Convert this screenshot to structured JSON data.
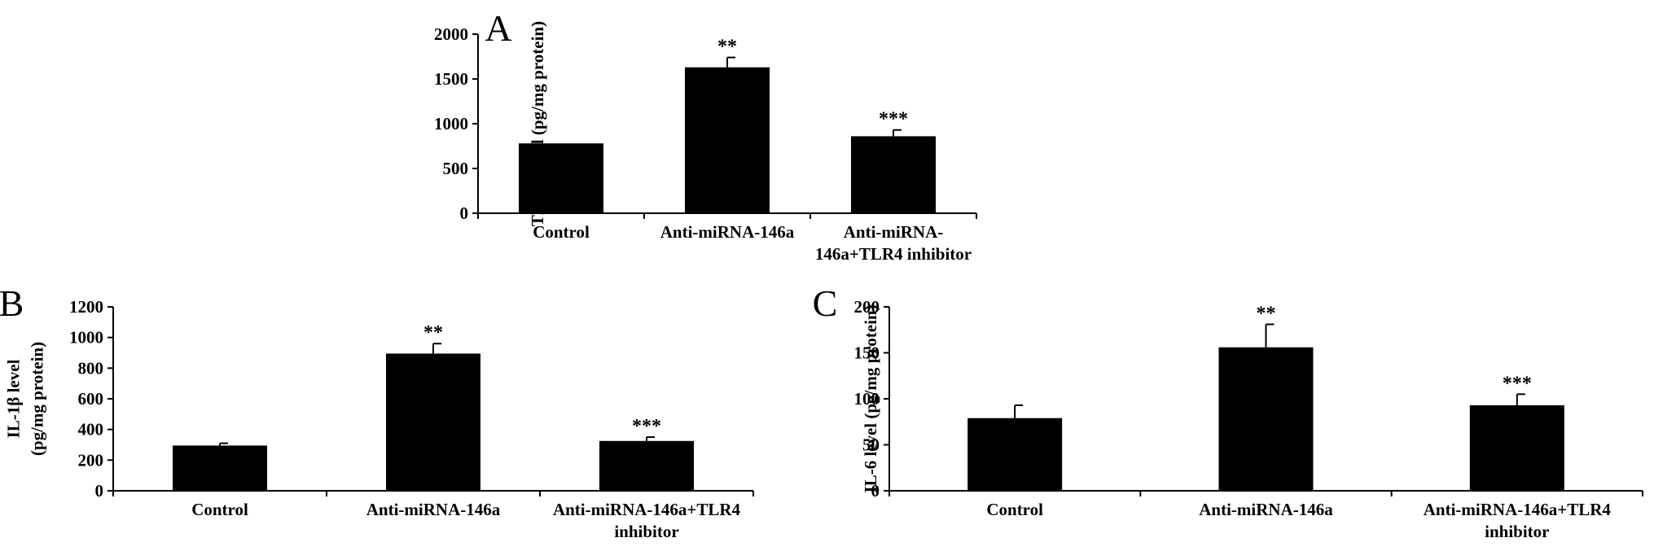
{
  "chart_data": [
    {
      "panel": "A",
      "type": "bar",
      "categories": [
        [
          "Control"
        ],
        [
          "Anti-miRNA-146a"
        ],
        [
          "Anti-miRNA-",
          "146a+TLR4 inhibitor"
        ]
      ],
      "values": [
        780,
        1630,
        860
      ],
      "error": [
        0,
        110,
        70
      ],
      "significance": [
        "",
        "**",
        "***"
      ],
      "ylabel": [
        "TNF-α level (pg/mg protein)"
      ],
      "ylim": [
        0,
        2000
      ],
      "yticks": [
        0,
        500,
        1000,
        1500,
        2000
      ],
      "bar_color": "#000000"
    },
    {
      "panel": "B",
      "type": "bar",
      "categories": [
        [
          "Control"
        ],
        [
          "Anti-miRNA-146a"
        ],
        [
          "Anti-miRNA-146a+TLR4",
          "inhibitor"
        ]
      ],
      "values": [
        295,
        895,
        325
      ],
      "error": [
        15,
        65,
        25
      ],
      "significance": [
        "",
        "**",
        "***"
      ],
      "ylabel": [
        "IL-1β level",
        "(pg/mg protein)"
      ],
      "ylim": [
        0,
        1200
      ],
      "yticks": [
        0,
        200,
        400,
        600,
        800,
        1000,
        1200
      ],
      "bar_color": "#000000"
    },
    {
      "panel": "C",
      "type": "bar",
      "categories": [
        [
          "Control"
        ],
        [
          "Anti-miRNA-146a"
        ],
        [
          "Anti-miRNA-146a+TLR4",
          "inhibitor"
        ]
      ],
      "values": [
        79,
        156,
        93
      ],
      "error": [
        14,
        25,
        12
      ],
      "significance": [
        "",
        "**",
        "***"
      ],
      "ylabel": [
        "IL-6 level (pg/mg protein)"
      ],
      "ylim": [
        0,
        200
      ],
      "yticks": [
        0,
        50,
        100,
        150,
        200
      ],
      "bar_color": "#000000"
    }
  ]
}
